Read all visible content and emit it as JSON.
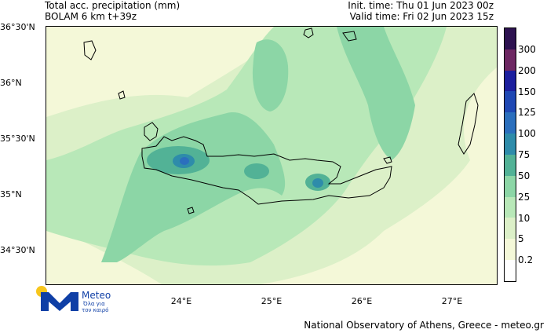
{
  "header": {
    "title_line1": "Total acc. precipitation (mm)",
    "title_line2": "BOLAM 6 km t+39z",
    "init_time": "Init. time: Thu 01 Jun 2023 00z",
    "valid_time": "Valid time: Fri 02 Jun 2023 15z"
  },
  "map": {
    "lat_labels": [
      "36°30'N",
      "36°N",
      "35°30'N",
      "35°N",
      "34°30'N"
    ],
    "lon_labels": [
      "24°E",
      "25°E",
      "26°E",
      "27°E"
    ]
  },
  "legend": {
    "levels": [
      "0.2",
      "5",
      "10",
      "25",
      "50",
      "75",
      "100",
      "125",
      "150",
      "200",
      "300"
    ],
    "colors": [
      "#ffffff",
      "#f4f8d8",
      "#dcf0c8",
      "#b8e8b8",
      "#8cd6a6",
      "#52b296",
      "#2e8caa",
      "#2b6fbd",
      "#1f48b4",
      "#1c1f9e",
      "#6d2762",
      "#2d1250"
    ]
  },
  "logo": {
    "name": "Meteo",
    "tagline_line1": "Όλα για",
    "tagline_line2": "τον καιρό",
    "icon": "meteo-logo-icon",
    "colors": {
      "dot": "#f7c61c",
      "m": "#0f3fa6"
    }
  },
  "footer": {
    "credit": "National Observatory of Athens, Greece - meteo.gr"
  }
}
